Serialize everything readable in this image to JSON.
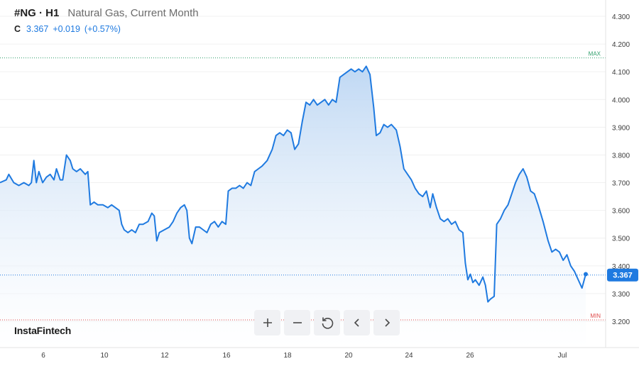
{
  "header": {
    "symbol": "#NG · H1",
    "name": "Natural Gas, Current Month",
    "close_label": "C",
    "last_price": "3.367",
    "change": "+0.019",
    "change_pct": "(+0.57%)"
  },
  "brand": {
    "logo": "InstaFintech"
  },
  "controls": [
    {
      "name": "zoom-in-button",
      "icon": "plus-icon"
    },
    {
      "name": "zoom-out-button",
      "icon": "minus-icon"
    },
    {
      "name": "reset-button",
      "icon": "refresh-icon"
    },
    {
      "name": "scroll-left-button",
      "icon": "chevron-left-icon"
    },
    {
      "name": "scroll-right-button",
      "icon": "chevron-right-icon"
    }
  ],
  "colors": {
    "line": "#1f7ae0",
    "area_top": "#bcd6f3",
    "area_bottom": "#ffffff",
    "max_line": "#2e9e6a",
    "min_line": "#e04b4b",
    "grid": "#f0f0f0",
    "price_tag_bg": "#1f7ae0",
    "axis_text": "#3a3a3a"
  },
  "chart_data": {
    "type": "area",
    "y_axis": {
      "ticks": [
        "4.300",
        "4.200",
        "4.100",
        "4.000",
        "3.900",
        "3.800",
        "3.700",
        "3.600",
        "3.500",
        "3.400",
        "3.300",
        "3.200"
      ],
      "range": [
        3.15,
        4.33
      ],
      "position": "right"
    },
    "x_axis": {
      "ticks": [
        {
          "label": "6",
          "x": 6
        },
        {
          "label": "10",
          "x": 10
        },
        {
          "label": "12",
          "x": 12
        },
        {
          "label": "16",
          "x": 16
        },
        {
          "label": "18",
          "x": 18
        },
        {
          "label": "20",
          "x": 20
        },
        {
          "label": "24",
          "x": 24
        },
        {
          "label": "26",
          "x": 26
        },
        {
          "label": "Jul",
          "x": 32
        }
      ],
      "range": [
        4.6,
        33.05
      ]
    },
    "max_label": "MAX",
    "max_value": 4.15,
    "min_label": "MIN",
    "min_value": 3.205,
    "last_value": 3.367,
    "last_label": "3.367",
    "series": [
      {
        "points": [
          [
            4.6,
            3.7
          ],
          [
            4.85,
            3.71
          ],
          [
            4.95,
            3.73
          ],
          [
            5.15,
            3.7
          ],
          [
            5.35,
            3.69
          ],
          [
            5.55,
            3.7
          ],
          [
            5.75,
            3.69
          ],
          [
            5.85,
            3.7
          ],
          [
            5.95,
            3.78
          ],
          [
            6.05,
            3.7
          ],
          [
            6.15,
            3.74
          ],
          [
            6.3,
            3.7
          ],
          [
            6.45,
            3.72
          ],
          [
            6.6,
            3.73
          ],
          [
            6.75,
            3.71
          ],
          [
            6.85,
            3.75
          ],
          [
            7.0,
            3.71
          ],
          [
            7.1,
            3.71
          ],
          [
            7.25,
            3.8
          ],
          [
            7.4,
            3.78
          ],
          [
            7.5,
            3.75
          ],
          [
            7.65,
            3.74
          ],
          [
            7.8,
            3.75
          ],
          [
            7.9,
            3.74
          ],
          [
            8.0,
            3.73
          ],
          [
            8.1,
            3.74
          ],
          [
            8.2,
            3.62
          ],
          [
            8.35,
            3.63
          ],
          [
            8.5,
            3.62
          ],
          [
            8.7,
            3.62
          ],
          [
            8.9,
            3.61
          ],
          [
            9.05,
            3.62
          ],
          [
            9.2,
            3.61
          ],
          [
            9.35,
            3.6
          ],
          [
            9.45,
            3.55
          ],
          [
            9.55,
            3.53
          ],
          [
            9.7,
            3.52
          ],
          [
            9.85,
            3.53
          ],
          [
            10.0,
            3.52
          ],
          [
            10.15,
            3.55
          ],
          [
            10.3,
            3.55
          ],
          [
            10.5,
            3.56
          ],
          [
            10.65,
            3.59
          ],
          [
            10.75,
            3.58
          ],
          [
            10.85,
            3.49
          ],
          [
            10.95,
            3.52
          ],
          [
            11.15,
            3.53
          ],
          [
            11.35,
            3.54
          ],
          [
            11.5,
            3.56
          ],
          [
            11.65,
            3.59
          ],
          [
            11.8,
            3.61
          ],
          [
            11.95,
            3.62
          ],
          [
            12.05,
            3.6
          ],
          [
            12.15,
            3.5
          ],
          [
            12.25,
            3.48
          ],
          [
            12.4,
            3.54
          ],
          [
            12.55,
            3.54
          ],
          [
            12.7,
            3.53
          ],
          [
            12.85,
            3.52
          ],
          [
            13.0,
            3.55
          ],
          [
            13.15,
            3.56
          ],
          [
            13.3,
            3.54
          ],
          [
            13.45,
            3.56
          ],
          [
            13.6,
            3.55
          ],
          [
            13.7,
            3.67
          ],
          [
            13.85,
            3.68
          ],
          [
            14.0,
            3.68
          ],
          [
            14.15,
            3.69
          ],
          [
            14.3,
            3.68
          ],
          [
            14.45,
            3.7
          ],
          [
            14.6,
            3.69
          ],
          [
            14.75,
            3.74
          ],
          [
            14.9,
            3.75
          ],
          [
            15.05,
            3.76
          ],
          [
            15.25,
            3.78
          ],
          [
            15.45,
            3.82
          ],
          [
            15.6,
            3.87
          ],
          [
            15.75,
            3.88
          ],
          [
            15.9,
            3.87
          ],
          [
            16.05,
            3.89
          ],
          [
            16.2,
            3.88
          ],
          [
            16.35,
            3.82
          ],
          [
            16.5,
            3.84
          ],
          [
            16.65,
            3.92
          ],
          [
            16.8,
            3.99
          ],
          [
            16.95,
            3.98
          ],
          [
            17.1,
            4.0
          ],
          [
            17.25,
            3.98
          ],
          [
            17.4,
            3.99
          ],
          [
            17.55,
            4.0
          ],
          [
            17.7,
            3.98
          ],
          [
            17.85,
            4.0
          ],
          [
            18.0,
            3.99
          ],
          [
            18.15,
            4.08
          ],
          [
            18.3,
            4.09
          ],
          [
            18.45,
            4.1
          ],
          [
            18.6,
            4.11
          ],
          [
            18.75,
            4.1
          ],
          [
            18.9,
            4.11
          ],
          [
            19.05,
            4.1
          ],
          [
            19.2,
            4.12
          ],
          [
            19.35,
            4.09
          ],
          [
            19.5,
            3.97
          ],
          [
            19.6,
            3.87
          ],
          [
            19.75,
            3.88
          ],
          [
            19.9,
            3.91
          ],
          [
            20.05,
            3.9
          ],
          [
            20.2,
            3.91
          ],
          [
            20.4,
            3.89
          ],
          [
            20.55,
            3.83
          ],
          [
            20.7,
            3.75
          ],
          [
            20.85,
            3.73
          ],
          [
            21.0,
            3.71
          ],
          [
            21.15,
            3.68
          ],
          [
            21.3,
            3.66
          ],
          [
            21.45,
            3.65
          ],
          [
            21.6,
            3.67
          ],
          [
            21.75,
            3.61
          ],
          [
            21.85,
            3.66
          ],
          [
            22.0,
            3.61
          ],
          [
            22.15,
            3.57
          ],
          [
            22.3,
            3.56
          ],
          [
            22.45,
            3.57
          ],
          [
            22.6,
            3.55
          ],
          [
            22.75,
            3.56
          ],
          [
            22.9,
            3.53
          ],
          [
            23.05,
            3.52
          ],
          [
            23.15,
            3.41
          ],
          [
            23.25,
            3.35
          ],
          [
            23.35,
            3.37
          ],
          [
            23.45,
            3.34
          ],
          [
            23.55,
            3.35
          ],
          [
            23.7,
            3.33
          ],
          [
            23.85,
            3.36
          ],
          [
            23.95,
            3.33
          ],
          [
            24.05,
            3.27
          ],
          [
            24.15,
            3.28
          ],
          [
            24.3,
            3.29
          ],
          [
            24.4,
            3.55
          ],
          [
            24.55,
            3.57
          ],
          [
            24.7,
            3.6
          ],
          [
            24.85,
            3.62
          ],
          [
            25.0,
            3.66
          ],
          [
            25.15,
            3.7
          ],
          [
            25.3,
            3.73
          ],
          [
            25.45,
            3.75
          ],
          [
            25.6,
            3.72
          ],
          [
            25.75,
            3.67
          ],
          [
            25.9,
            3.66
          ],
          [
            26.05,
            3.62
          ],
          [
            26.25,
            3.56
          ],
          [
            26.45,
            3.49
          ],
          [
            26.6,
            3.45
          ],
          [
            26.75,
            3.46
          ],
          [
            26.9,
            3.45
          ],
          [
            27.05,
            3.42
          ],
          [
            27.2,
            3.44
          ],
          [
            27.35,
            3.4
          ],
          [
            27.5,
            3.38
          ],
          [
            27.65,
            3.35
          ],
          [
            27.8,
            3.32
          ],
          [
            27.95,
            3.37
          ]
        ]
      }
    ],
    "x_plot_scale_note": ""
  }
}
